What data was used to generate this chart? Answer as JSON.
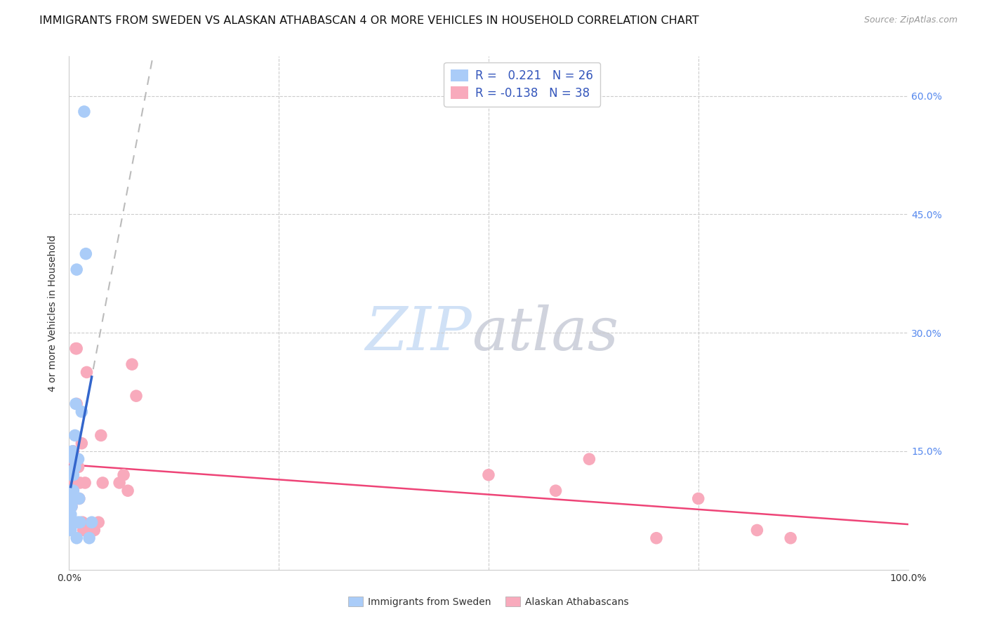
{
  "title": "IMMIGRANTS FROM SWEDEN VS ALASKAN ATHABASCAN 4 OR MORE VEHICLES IN HOUSEHOLD CORRELATION CHART",
  "source": "Source: ZipAtlas.com",
  "ylabel": "4 or more Vehicles in Household",
  "xlim": [
    0,
    1.0
  ],
  "ylim": [
    0,
    0.65
  ],
  "sweden_R": 0.221,
  "sweden_N": 26,
  "athabascan_R": -0.138,
  "athabascan_N": 38,
  "sweden_color": "#aaccf8",
  "sweden_line_color": "#3366cc",
  "athabascan_color": "#f8aabc",
  "athabascan_line_color": "#ee4477",
  "grid_color": "#cccccc",
  "sweden_x": [
    0.002,
    0.002,
    0.002,
    0.003,
    0.003,
    0.003,
    0.003,
    0.004,
    0.004,
    0.005,
    0.005,
    0.006,
    0.007,
    0.007,
    0.008,
    0.009,
    0.009,
    0.01,
    0.011,
    0.012,
    0.013,
    0.015,
    0.018,
    0.02,
    0.024,
    0.027
  ],
  "sweden_y": [
    0.05,
    0.06,
    0.07,
    0.08,
    0.09,
    0.1,
    0.12,
    0.09,
    0.15,
    0.1,
    0.12,
    0.14,
    0.13,
    0.17,
    0.21,
    0.38,
    0.04,
    0.06,
    0.14,
    0.09,
    0.06,
    0.2,
    0.58,
    0.4,
    0.04,
    0.06
  ],
  "athabascan_x": [
    0.002,
    0.003,
    0.004,
    0.004,
    0.005,
    0.005,
    0.006,
    0.007,
    0.008,
    0.009,
    0.009,
    0.01,
    0.011,
    0.012,
    0.013,
    0.015,
    0.016,
    0.017,
    0.019,
    0.021,
    0.026,
    0.028,
    0.03,
    0.035,
    0.038,
    0.04,
    0.06,
    0.065,
    0.07,
    0.075,
    0.08,
    0.5,
    0.58,
    0.62,
    0.7,
    0.75,
    0.82,
    0.86
  ],
  "athabascan_y": [
    0.1,
    0.08,
    0.12,
    0.14,
    0.09,
    0.15,
    0.09,
    0.11,
    0.28,
    0.28,
    0.21,
    0.14,
    0.13,
    0.09,
    0.11,
    0.16,
    0.06,
    0.05,
    0.11,
    0.25,
    0.05,
    0.05,
    0.05,
    0.06,
    0.17,
    0.11,
    0.11,
    0.12,
    0.1,
    0.26,
    0.22,
    0.12,
    0.1,
    0.14,
    0.04,
    0.09,
    0.05,
    0.04
  ],
  "title_fontsize": 11.5,
  "axis_label_fontsize": 10,
  "tick_fontsize": 10,
  "legend_fontsize": 12,
  "source_fontsize": 9
}
